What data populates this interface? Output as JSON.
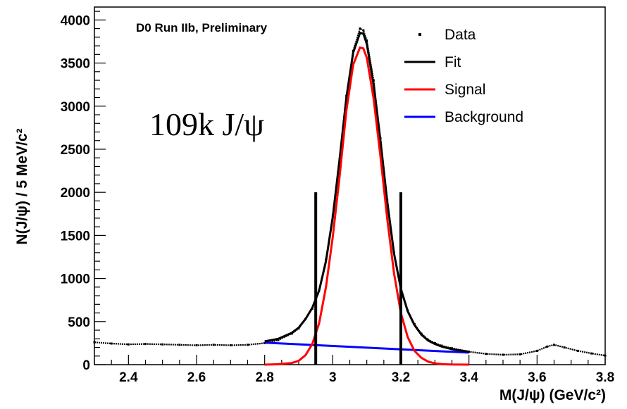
{
  "chart_data": {
    "type": "line",
    "title": "D0 Run IIb, Preliminary",
    "xlabel": "M(J/ψ)    (GeV/c²)",
    "ylabel": "N(J/ψ) / 5 MeV/c²",
    "xlim": [
      2.3,
      3.8
    ],
    "ylim": [
      0,
      4150
    ],
    "x_ticks": [
      "2.4",
      "2.6",
      "2.8",
      "3",
      "3.2",
      "3.4",
      "3.6",
      "3.8"
    ],
    "y_ticks": [
      "0",
      "500",
      "1000",
      "1500",
      "2000",
      "2500",
      "3000",
      "3500",
      "4000"
    ],
    "annotation": "109k J/ψ",
    "legend": {
      "placement": "top-right",
      "entries": [
        "Data",
        "Fit",
        "Signal",
        "Background"
      ]
    },
    "colors": {
      "data": "#000000",
      "fit": "#000000",
      "signal": "#ff0000",
      "background": "#0000ff"
    },
    "mass_window_lines": {
      "x": [
        2.95,
        3.2
      ],
      "top": 2000
    },
    "series": [
      {
        "name": "Data",
        "kind": "points",
        "x": [
          2.3,
          2.35,
          2.4,
          2.45,
          2.5,
          2.55,
          2.6,
          2.65,
          2.7,
          2.75,
          2.8,
          2.84,
          2.88,
          2.9,
          2.92,
          2.94,
          2.96,
          2.98,
          3.0,
          3.02,
          3.04,
          3.06,
          3.08,
          3.09,
          3.1,
          3.12,
          3.14,
          3.16,
          3.18,
          3.2,
          3.22,
          3.24,
          3.26,
          3.28,
          3.3,
          3.32,
          3.35,
          3.4,
          3.45,
          3.5,
          3.55,
          3.6,
          3.63,
          3.65,
          3.68,
          3.72,
          3.76,
          3.8
        ],
        "y": [
          260,
          245,
          235,
          240,
          235,
          230,
          225,
          230,
          225,
          230,
          250,
          285,
          360,
          420,
          530,
          650,
          860,
          1220,
          1730,
          2390,
          3120,
          3640,
          3900,
          3880,
          3760,
          3300,
          2630,
          1910,
          1300,
          890,
          630,
          470,
          360,
          290,
          250,
          220,
          190,
          150,
          125,
          115,
          120,
          160,
          210,
          230,
          200,
          160,
          130,
          105
        ]
      },
      {
        "name": "Fit",
        "kind": "line",
        "x": [
          2.8,
          2.84,
          2.88,
          2.9,
          2.92,
          2.94,
          2.96,
          2.98,
          3.0,
          3.02,
          3.04,
          3.06,
          3.08,
          3.09,
          3.1,
          3.12,
          3.14,
          3.16,
          3.18,
          3.2,
          3.22,
          3.24,
          3.26,
          3.28,
          3.3,
          3.32,
          3.35,
          3.4
        ],
        "y": [
          270,
          300,
          370,
          430,
          530,
          660,
          860,
          1200,
          1710,
          2380,
          3100,
          3620,
          3850,
          3840,
          3720,
          3250,
          2600,
          1890,
          1290,
          880,
          620,
          460,
          350,
          280,
          240,
          210,
          180,
          150
        ]
      },
      {
        "name": "Signal",
        "kind": "line",
        "x": [
          2.8,
          2.84,
          2.88,
          2.9,
          2.92,
          2.94,
          2.96,
          2.98,
          3.0,
          3.02,
          3.04,
          3.06,
          3.08,
          3.09,
          3.1,
          3.12,
          3.14,
          3.16,
          3.18,
          3.2,
          3.22,
          3.24,
          3.26,
          3.28,
          3.3,
          3.32,
          3.35,
          3.4
        ],
        "y": [
          0,
          5,
          20,
          45,
          110,
          240,
          480,
          900,
          1480,
          2180,
          2950,
          3480,
          3680,
          3670,
          3560,
          3090,
          2420,
          1690,
          1060,
          600,
          320,
          160,
          80,
          35,
          15,
          6,
          2,
          0
        ]
      },
      {
        "name": "Background",
        "kind": "line",
        "x": [
          2.8,
          3.4
        ],
        "y": [
          255,
          140
        ]
      }
    ]
  }
}
